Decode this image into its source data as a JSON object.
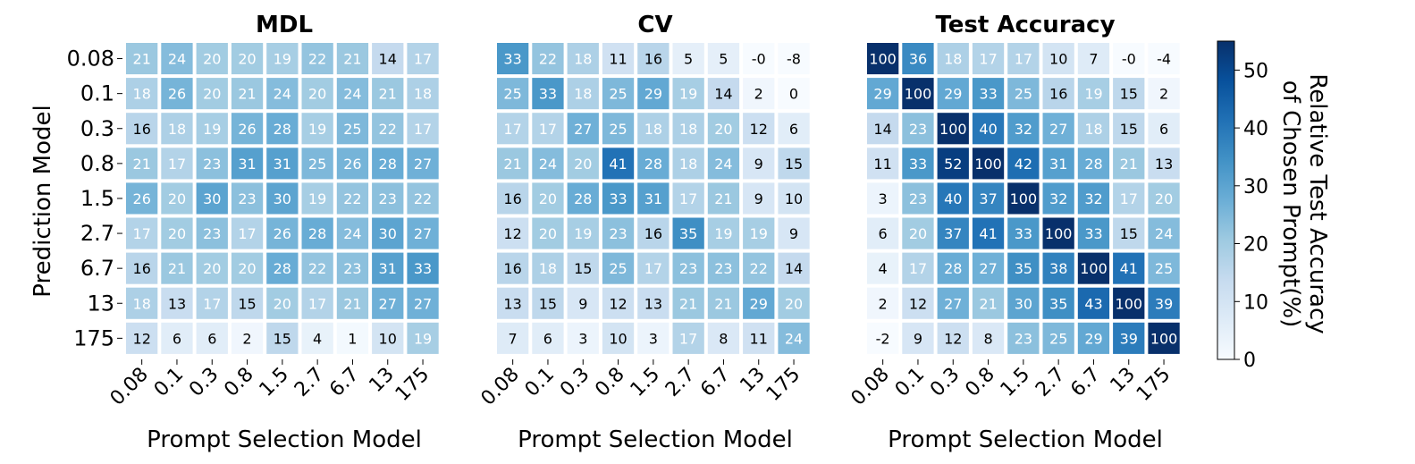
{
  "chart_data": [
    {
      "type": "heatmap",
      "title": "MDL",
      "xlabel": "Prompt Selection Model",
      "ylabel": "Prediction Model",
      "x_categories": [
        "0.08",
        "0.1",
        "0.3",
        "0.8",
        "1.5",
        "2.7",
        "6.7",
        "13",
        "175"
      ],
      "y_categories": [
        "0.08",
        "0.1",
        "0.3",
        "0.8",
        "1.5",
        "2.7",
        "6.7",
        "13",
        "175"
      ],
      "values": [
        [
          21,
          24,
          20,
          20,
          19,
          22,
          21,
          14,
          17
        ],
        [
          18,
          26,
          20,
          21,
          24,
          20,
          24,
          21,
          18
        ],
        [
          16,
          18,
          19,
          26,
          28,
          19,
          25,
          22,
          17
        ],
        [
          21,
          17,
          23,
          31,
          31,
          25,
          26,
          28,
          27
        ],
        [
          26,
          20,
          30,
          23,
          30,
          19,
          22,
          23,
          22
        ],
        [
          17,
          20,
          23,
          17,
          26,
          28,
          24,
          30,
          27
        ],
        [
          16,
          21,
          20,
          20,
          28,
          22,
          23,
          31,
          33
        ],
        [
          18,
          13,
          17,
          15,
          20,
          17,
          21,
          27,
          27
        ],
        [
          12,
          6,
          6,
          2,
          15,
          4,
          1,
          10,
          19
        ]
      ]
    },
    {
      "type": "heatmap",
      "title": "CV",
      "xlabel": "Prompt Selection Model",
      "ylabel": "",
      "x_categories": [
        "0.08",
        "0.1",
        "0.3",
        "0.8",
        "1.5",
        "2.7",
        "6.7",
        "13",
        "175"
      ],
      "y_categories": [
        "0.08",
        "0.1",
        "0.3",
        "0.8",
        "1.5",
        "2.7",
        "6.7",
        "13",
        "175"
      ],
      "values": [
        [
          33,
          22,
          18,
          11,
          16,
          5,
          5,
          "-0",
          -8
        ],
        [
          25,
          33,
          18,
          25,
          29,
          19,
          14,
          2,
          0
        ],
        [
          17,
          17,
          27,
          25,
          18,
          18,
          20,
          12,
          6
        ],
        [
          21,
          24,
          20,
          41,
          28,
          18,
          24,
          9,
          15
        ],
        [
          16,
          20,
          28,
          33,
          31,
          17,
          21,
          9,
          10
        ],
        [
          12,
          20,
          19,
          23,
          16,
          35,
          19,
          19,
          9
        ],
        [
          16,
          18,
          15,
          25,
          17,
          23,
          23,
          22,
          14
        ],
        [
          13,
          15,
          9,
          12,
          13,
          21,
          21,
          29,
          20
        ],
        [
          7,
          6,
          3,
          10,
          3,
          17,
          8,
          11,
          24
        ]
      ]
    },
    {
      "type": "heatmap",
      "title": "Test Accuracy",
      "xlabel": "Prompt Selection Model",
      "ylabel": "",
      "x_categories": [
        "0.08",
        "0.1",
        "0.3",
        "0.8",
        "1.5",
        "2.7",
        "6.7",
        "13",
        "175"
      ],
      "y_categories": [
        "0.08",
        "0.1",
        "0.3",
        "0.8",
        "1.5",
        "2.7",
        "6.7",
        "13",
        "175"
      ],
      "values": [
        [
          100,
          36,
          18,
          17,
          17,
          10,
          7,
          "-0",
          -4
        ],
        [
          29,
          100,
          29,
          33,
          25,
          16,
          19,
          15,
          2
        ],
        [
          14,
          23,
          100,
          40,
          32,
          27,
          18,
          15,
          6
        ],
        [
          11,
          33,
          52,
          100,
          42,
          31,
          28,
          21,
          13
        ],
        [
          3,
          23,
          40,
          37,
          100,
          32,
          32,
          17,
          20
        ],
        [
          6,
          20,
          37,
          41,
          33,
          100,
          33,
          15,
          24
        ],
        [
          4,
          17,
          28,
          27,
          35,
          38,
          100,
          41,
          25
        ],
        [
          2,
          12,
          27,
          21,
          30,
          35,
          43,
          100,
          39
        ],
        [
          -2,
          9,
          12,
          8,
          23,
          25,
          29,
          39,
          100
        ]
      ]
    }
  ],
  "colorbar": {
    "label_line1": "Relative Test Accuracy",
    "label_line2": "of Chosen Prompt(%)",
    "min": 0,
    "max": 55,
    "ticks": [
      "0",
      "10",
      "20",
      "30",
      "40",
      "50"
    ],
    "colormap": "Blues",
    "color_low": "#f7fbff",
    "color_high": "#08306b"
  }
}
